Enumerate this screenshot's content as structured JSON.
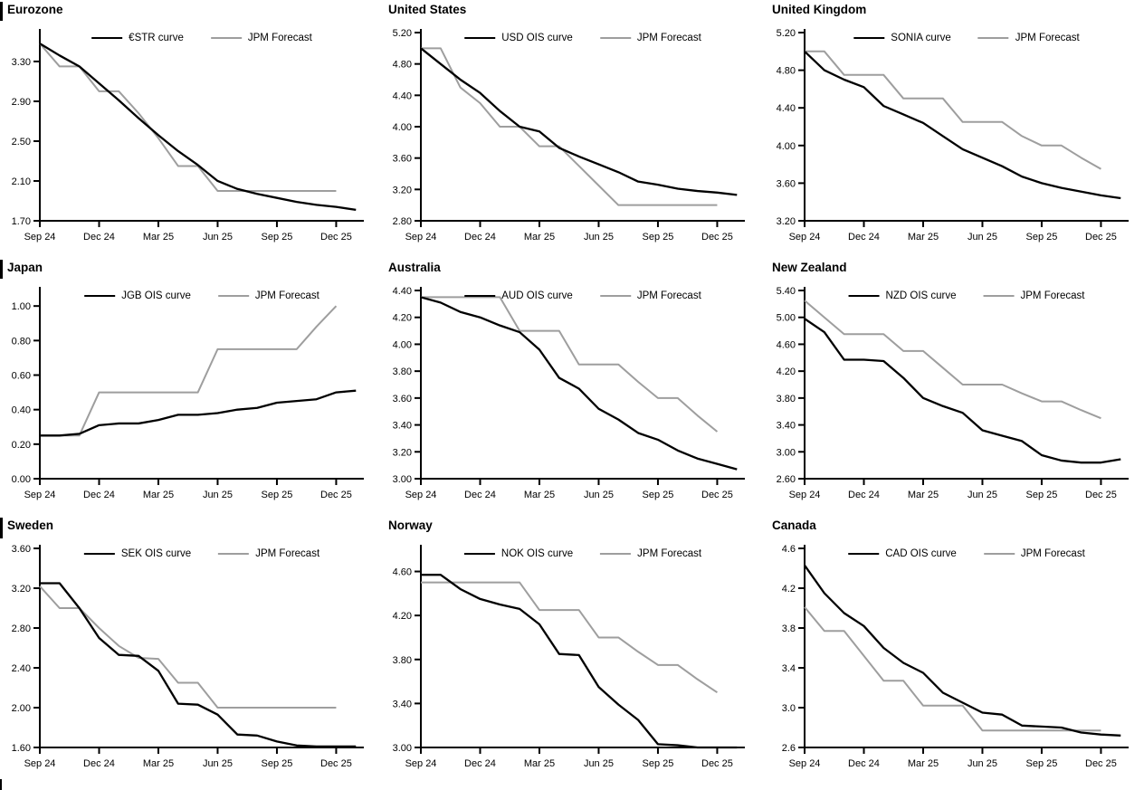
{
  "colors": {
    "ois_line": "#000000",
    "forecast_line": "#9e9e9e",
    "axis": "#000000",
    "text": "#000000",
    "background": "#ffffff"
  },
  "x_axis": {
    "tick_labels": [
      "Sep 24",
      "Dec 24",
      "Mar 25",
      "Jun 25",
      "Sep 25",
      "Dec 25"
    ],
    "tick_month_index": [
      0,
      3,
      6,
      9,
      12,
      15
    ],
    "months_span": 16.4
  },
  "chart_data": [
    {
      "type": "line",
      "title": "Eurozone",
      "y_min": 1.7,
      "y_max": 3.59,
      "y_decimals": 2,
      "y_ticks": [
        1.7,
        2.1,
        2.5,
        2.9,
        3.3
      ],
      "series": [
        {
          "name": "€STR curve",
          "role": "ois",
          "values": [
            3.48,
            3.36,
            3.25,
            3.08,
            2.91,
            2.73,
            2.56,
            2.4,
            2.26,
            2.1,
            2.02,
            1.97,
            1.93,
            1.89,
            1.86,
            1.84,
            1.81
          ]
        },
        {
          "name": "JPM Forecast",
          "role": "forecast",
          "values": [
            3.48,
            3.25,
            3.25,
            3.0,
            3.0,
            2.78,
            2.53,
            2.25,
            2.25,
            2.0,
            2.0,
            2.0,
            2.0,
            2.0,
            2.0,
            2.0
          ]
        }
      ]
    },
    {
      "type": "line",
      "title": "United States",
      "y_min": 2.8,
      "y_max": 5.2,
      "y_decimals": 2,
      "y_ticks": [
        2.8,
        3.2,
        3.6,
        4.0,
        4.4,
        4.8,
        5.2
      ],
      "series": [
        {
          "name": "USD OIS curve",
          "role": "ois",
          "values": [
            5.0,
            4.8,
            4.6,
            4.43,
            4.2,
            4.0,
            3.94,
            3.73,
            3.62,
            3.52,
            3.42,
            3.3,
            3.26,
            3.21,
            3.18,
            3.16,
            3.13
          ]
        },
        {
          "name": "JPM Forecast",
          "role": "forecast",
          "values": [
            5.0,
            5.0,
            4.5,
            4.3,
            4.0,
            4.0,
            3.75,
            3.75,
            3.5,
            3.25,
            3.0,
            3.0,
            3.0,
            3.0,
            3.0,
            3.0
          ]
        }
      ]
    },
    {
      "type": "line",
      "title": "United Kingdom",
      "y_min": 3.2,
      "y_max": 5.2,
      "y_decimals": 2,
      "y_ticks": [
        3.2,
        3.6,
        4.0,
        4.4,
        4.8,
        5.2
      ],
      "series": [
        {
          "name": "SONIA curve",
          "role": "ois",
          "values": [
            5.0,
            4.8,
            4.7,
            4.62,
            4.42,
            4.33,
            4.24,
            4.1,
            3.96,
            3.87,
            3.78,
            3.67,
            3.6,
            3.55,
            3.51,
            3.47,
            3.44
          ]
        },
        {
          "name": "JPM Forecast",
          "role": "forecast",
          "values": [
            5.0,
            5.0,
            4.75,
            4.75,
            4.75,
            4.5,
            4.5,
            4.5,
            4.25,
            4.25,
            4.25,
            4.1,
            4.0,
            4.0,
            3.87,
            3.75
          ]
        }
      ]
    },
    {
      "type": "line",
      "title": "Japan",
      "y_min": 0.0,
      "y_max": 1.09,
      "y_decimals": 2,
      "y_ticks": [
        0.0,
        0.2,
        0.4,
        0.6,
        0.8,
        1.0
      ],
      "series": [
        {
          "name": "JGB OIS curve",
          "role": "ois",
          "values": [
            0.25,
            0.25,
            0.26,
            0.31,
            0.32,
            0.32,
            0.34,
            0.37,
            0.37,
            0.38,
            0.4,
            0.41,
            0.44,
            0.45,
            0.46,
            0.5,
            0.51
          ]
        },
        {
          "name": "JPM Forecast",
          "role": "forecast",
          "values": [
            0.25,
            0.25,
            0.25,
            0.5,
            0.5,
            0.5,
            0.5,
            0.5,
            0.5,
            0.75,
            0.75,
            0.75,
            0.75,
            0.75,
            0.88,
            1.0
          ]
        }
      ]
    },
    {
      "type": "line",
      "title": "Australia",
      "y_min": 3.0,
      "y_max": 4.4,
      "y_decimals": 2,
      "y_ticks": [
        3.0,
        3.2,
        3.4,
        3.6,
        3.8,
        4.0,
        4.2,
        4.4
      ],
      "series": [
        {
          "name": "AUD OIS curve",
          "role": "ois",
          "values": [
            4.35,
            4.31,
            4.24,
            4.2,
            4.14,
            4.09,
            3.96,
            3.75,
            3.67,
            3.52,
            3.44,
            3.34,
            3.29,
            3.21,
            3.15,
            3.11,
            3.07
          ]
        },
        {
          "name": "JPM Forecast",
          "role": "forecast",
          "values": [
            4.35,
            4.35,
            4.35,
            4.35,
            4.35,
            4.1,
            4.1,
            4.1,
            3.85,
            3.85,
            3.85,
            3.72,
            3.6,
            3.6,
            3.47,
            3.35
          ]
        }
      ]
    },
    {
      "type": "line",
      "title": "New Zealand",
      "y_min": 2.6,
      "y_max": 5.4,
      "y_decimals": 2,
      "y_ticks": [
        2.6,
        3.0,
        3.4,
        3.8,
        4.2,
        4.6,
        5.0,
        5.4
      ],
      "series": [
        {
          "name": "NZD OIS curve",
          "role": "ois",
          "values": [
            4.98,
            4.78,
            4.37,
            4.37,
            4.35,
            4.1,
            3.8,
            3.68,
            3.58,
            3.32,
            3.24,
            3.16,
            2.95,
            2.87,
            2.84,
            2.84,
            2.89
          ]
        },
        {
          "name": "JPM Forecast",
          "role": "forecast",
          "values": [
            5.25,
            5.0,
            4.75,
            4.75,
            4.75,
            4.5,
            4.5,
            4.25,
            4.0,
            4.0,
            4.0,
            3.87,
            3.75,
            3.75,
            3.62,
            3.5
          ]
        }
      ]
    },
    {
      "type": "line",
      "title": "Sweden",
      "y_min": 1.6,
      "y_max": 3.6,
      "y_decimals": 2,
      "y_ticks": [
        1.6,
        2.0,
        2.4,
        2.8,
        3.2,
        3.6
      ],
      "series": [
        {
          "name": "SEK OIS curve",
          "role": "ois",
          "values": [
            3.25,
            3.25,
            3.0,
            2.7,
            2.53,
            2.52,
            2.37,
            2.04,
            2.03,
            1.93,
            1.73,
            1.72,
            1.66,
            1.62,
            1.61,
            1.61,
            1.61
          ]
        },
        {
          "name": "JPM Forecast",
          "role": "forecast",
          "values": [
            3.22,
            3.0,
            3.0,
            2.8,
            2.62,
            2.5,
            2.49,
            2.25,
            2.25,
            2.0,
            2.0,
            2.0,
            2.0,
            2.0,
            2.0,
            2.0
          ]
        }
      ]
    },
    {
      "type": "line",
      "title": "Norway",
      "y_min": 3.0,
      "y_max": 4.81,
      "y_decimals": 2,
      "y_ticks": [
        3.0,
        3.4,
        3.8,
        4.2,
        4.6
      ],
      "series": [
        {
          "name": "NOK OIS curve",
          "role": "ois",
          "values": [
            4.57,
            4.57,
            4.44,
            4.35,
            4.3,
            4.26,
            4.12,
            3.85,
            3.84,
            3.55,
            3.39,
            3.25,
            3.03,
            3.02,
            3.0,
            3.0,
            3.0
          ]
        },
        {
          "name": "JPM Forecast",
          "role": "forecast",
          "values": [
            4.5,
            4.5,
            4.5,
            4.5,
            4.5,
            4.5,
            4.25,
            4.25,
            4.25,
            4.0,
            4.0,
            3.87,
            3.75,
            3.75,
            3.62,
            3.5
          ]
        }
      ]
    },
    {
      "type": "line",
      "title": "Canada",
      "y_min": 2.6,
      "y_max": 4.6,
      "y_decimals": 1,
      "y_ticks": [
        2.6,
        3.0,
        3.4,
        3.8,
        4.2,
        4.6
      ],
      "series": [
        {
          "name": "CAD OIS curve",
          "role": "ois",
          "values": [
            4.43,
            4.15,
            3.95,
            3.82,
            3.6,
            3.45,
            3.35,
            3.15,
            3.05,
            2.95,
            2.93,
            2.82,
            2.81,
            2.8,
            2.75,
            2.73,
            2.72
          ]
        },
        {
          "name": "JPM Forecast",
          "role": "forecast",
          "values": [
            4.01,
            3.77,
            3.77,
            3.52,
            3.27,
            3.27,
            3.02,
            3.02,
            3.02,
            2.77,
            2.77,
            2.77,
            2.77,
            2.77,
            2.77,
            2.77
          ]
        }
      ]
    }
  ]
}
